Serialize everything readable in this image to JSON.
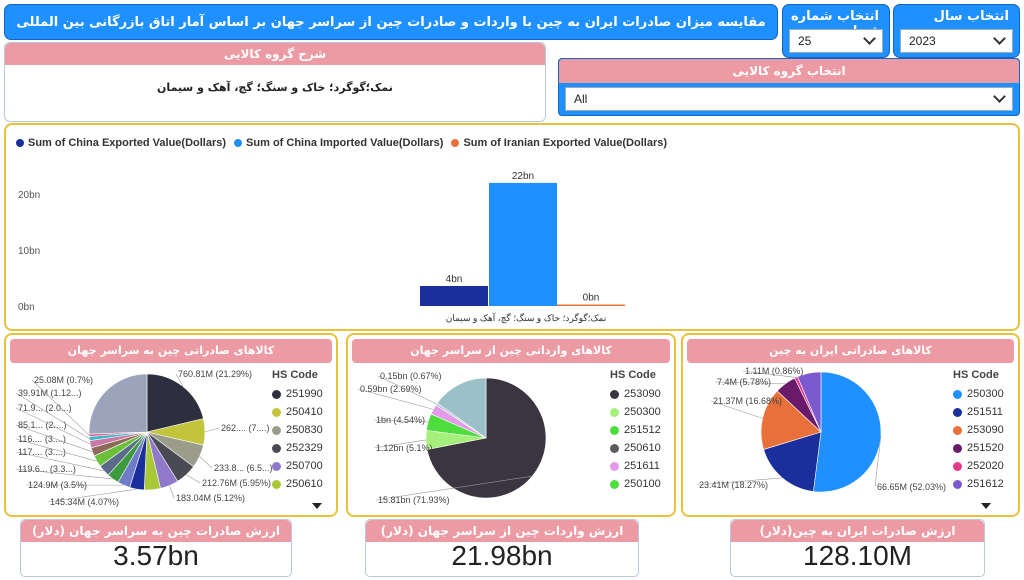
{
  "header": {
    "title": "مقایسه میزان صادرات ایران به چین با واردات و صادرات چین از سراسر جهان بر اساس آمار اتاق بازرگانی بین المللی"
  },
  "slicers": {
    "chapter": {
      "label": "انتخاب شماره فصل",
      "value": "25"
    },
    "year": {
      "label": "انتخاب سال",
      "value": "2023"
    },
    "group": {
      "label": "انتخاب گروه کالایی",
      "value": "All"
    }
  },
  "description": {
    "title": "شرح گروه کالایی",
    "text": "نمک؛گوگرد؛ خاک و سنگ؛ گچ، آهک و سیمان"
  },
  "colors": {
    "accent": "#1e90ff",
    "header_pink": "#ec9aa3",
    "card_border": "#e8c23a"
  },
  "bar_chart": {
    "legend": [
      {
        "label": "Sum of China Exported Value(Dollars)",
        "color": "#1a2e9c"
      },
      {
        "label": "Sum of China Imported Value(Dollars)",
        "color": "#1e90ff"
      },
      {
        "label": "Sum of Iranian Exported Value(Dollars)",
        "color": "#e8703a"
      }
    ],
    "y_ticks": [
      "0bn",
      "10bn",
      "20bn"
    ],
    "category_label": "نمک؛گوگرد؛ خاک و سنگ؛ گچ، آهک و سیمان",
    "data_labels": [
      "4bn",
      "22bn",
      "0bn"
    ]
  },
  "chart_data": [
    {
      "type": "bar",
      "categories": [
        "نمک؛گوگرد؛ خاک و سنگ؛ گچ، آهک و سیمان"
      ],
      "series": [
        {
          "name": "Sum of China Exported Value(Dollars)",
          "values": [
            3.57
          ],
          "color": "#1a2e9c"
        },
        {
          "name": "Sum of China Imported Value(Dollars)",
          "values": [
            21.98
          ],
          "color": "#1e90ff"
        },
        {
          "name": "Sum of Iranian Exported Value(Dollars)",
          "values": [
            0.128
          ],
          "color": "#e8703a"
        }
      ],
      "ylim": [
        0,
        25
      ],
      "yticks": [
        0,
        10,
        20
      ],
      "legend_position": "top-left",
      "grid": false
    },
    {
      "type": "pie",
      "title": "کالاهای صادراتی چین به سراسر جهان",
      "legend_title": "HS Code",
      "legend": [
        "251990",
        "250410",
        "250830",
        "252329",
        "250700",
        "250610"
      ],
      "slices": [
        {
          "label": "760.81M (21.29%)",
          "value": 21.29,
          "color": "#2e2f3e"
        },
        {
          "label": "262.... (7....)",
          "value": 7.35,
          "color": "#c2c43c"
        },
        {
          "label": "233.8... (6.5...)",
          "value": 6.54,
          "color": "#9b9d8a"
        },
        {
          "label": "212.76M (5.95%)",
          "value": 5.95,
          "color": "#4a4a55"
        },
        {
          "label": "183.04M (5.12%)",
          "value": 5.12,
          "color": "#8f79c8"
        },
        {
          "label": "",
          "value": 4.5,
          "color": "#a8c838"
        },
        {
          "label": "145.34M (4.07%)",
          "value": 4.07,
          "color": "#1a2e9c"
        },
        {
          "label": "124.9M (3.5%)",
          "value": 3.5,
          "color": "#6f7cc8"
        },
        {
          "label": "119.6... (3.3...)",
          "value": 3.35,
          "color": "#3d9a3d"
        },
        {
          "label": "117.... (3....)",
          "value": 3.3,
          "color": "#5a6b8a"
        },
        {
          "label": "116.... (3....)",
          "value": 3.25,
          "color": "#6bbf3b"
        },
        {
          "label": "85.1... (2....)",
          "value": 2.38,
          "color": "#8d6a5a"
        },
        {
          "label": "71.9... (2.0...)",
          "value": 2.01,
          "color": "#c77aa5"
        },
        {
          "label": "39.91M (1.12...)",
          "value": 1.12,
          "color": "#3bb5c9"
        },
        {
          "label": "25.08M (0.7%)",
          "value": 0.7,
          "color": "#d95a8a"
        },
        {
          "label": "",
          "value": 25.56,
          "color": "#9ca4bc"
        }
      ]
    },
    {
      "type": "pie",
      "title": "کالاهای وارداتی چین از سراسر جهان",
      "legend_title": "HS Code",
      "legend": [
        "253090",
        "250300",
        "251512",
        "250610",
        "251611",
        "250100"
      ],
      "slices": [
        {
          "label": "15.81bn (71.93%)",
          "value": 71.93,
          "color": "#3a3540"
        },
        {
          "label": "1.12bn (5.1%)",
          "value": 5.1,
          "color": "#a5f07a"
        },
        {
          "label": "1bn (4.54%)",
          "value": 4.54,
          "color": "#4ddd3d"
        },
        {
          "label": "0.59bn (2.69%)",
          "value": 2.69,
          "color": "#e39ae8"
        },
        {
          "label": "0.15bn (0.67%)",
          "value": 0.67,
          "color": "#b7c7d8"
        },
        {
          "label": "",
          "value": 15.07,
          "color": "#9cc0c8"
        }
      ]
    },
    {
      "type": "pie",
      "title": "کالاهای صادراتی ایران به چین",
      "legend_title": "HS Code",
      "legend": [
        "250300",
        "251511",
        "253090",
        "251520",
        "252020",
        "251612"
      ],
      "slices": [
        {
          "label": "66.65M (52.03%)",
          "value": 52.03,
          "color": "#1e90ff"
        },
        {
          "label": "23.41M (18.27%)",
          "value": 18.27,
          "color": "#1a2e9c"
        },
        {
          "label": "21.37M (16.68%)",
          "value": 16.68,
          "color": "#e8703a"
        },
        {
          "label": "7.4M (5.78%)",
          "value": 5.78,
          "color": "#6a1a6a"
        },
        {
          "label": "1.11M (0.86%)",
          "value": 0.86,
          "color": "#e33a8a"
        },
        {
          "label": "",
          "value": 6.38,
          "color": "#7b5ad0"
        }
      ]
    }
  ],
  "kpis": [
    {
      "label": "ارزش صادرات چین به سراسر جهان (دلار)",
      "value": "3.57bn"
    },
    {
      "label": "ارزش واردات چین از سراسر جهان (دلار)",
      "value": "21.98bn"
    },
    {
      "label": "ارزش صادرات ایران به چین(دلار)",
      "value": "128.10M"
    }
  ]
}
